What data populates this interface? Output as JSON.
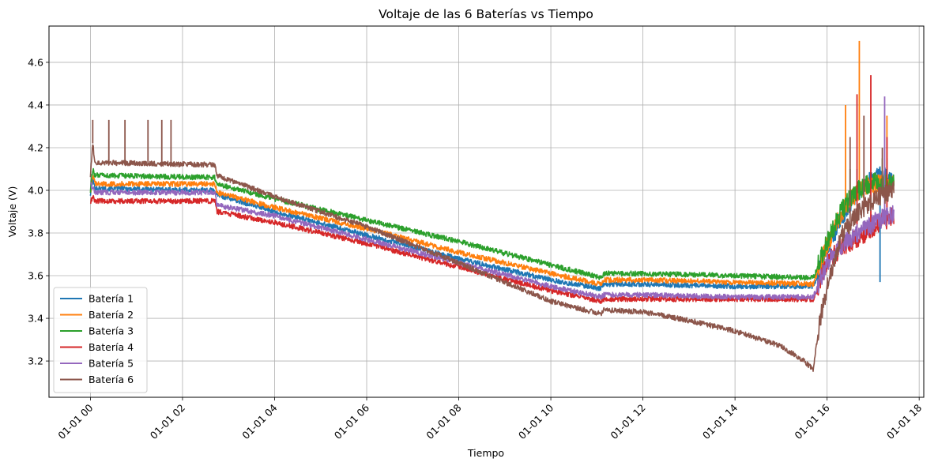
{
  "chart_data": {
    "type": "line",
    "title": "Voltaje de las 6 Baterías vs Tiempo",
    "xlabel": "Tiempo",
    "ylabel": "Voltaje (V)",
    "x_unit": "hours",
    "xlim": [
      -0.9,
      18.1
    ],
    "ylim": [
      3.03,
      4.77
    ],
    "x_ticks": [
      {
        "v": 0,
        "label": "01-01 00"
      },
      {
        "v": 2,
        "label": "01-01 02"
      },
      {
        "v": 4,
        "label": "01-01 04"
      },
      {
        "v": 6,
        "label": "01-01 06"
      },
      {
        "v": 8,
        "label": "01-01 08"
      },
      {
        "v": 10,
        "label": "01-01 10"
      },
      {
        "v": 12,
        "label": "01-01 12"
      },
      {
        "v": 14,
        "label": "01-01 14"
      },
      {
        "v": 16,
        "label": "01-01 16"
      },
      {
        "v": 18,
        "label": "01-01 18"
      }
    ],
    "y_ticks": [
      {
        "v": 3.2,
        "label": "3.2"
      },
      {
        "v": 3.4,
        "label": "3.4"
      },
      {
        "v": 3.6,
        "label": "3.6"
      },
      {
        "v": 3.8,
        "label": "3.8"
      },
      {
        "v": 4.0,
        "label": "4.0"
      },
      {
        "v": 4.2,
        "label": "4.2"
      },
      {
        "v": 4.4,
        "label": "4.4"
      },
      {
        "v": 4.6,
        "label": "4.6"
      }
    ],
    "grid": true,
    "legend_position": "lower-left",
    "series": [
      {
        "name": "Batería 1",
        "color": "#1f77b4",
        "x": [
          0,
          0.05,
          0.1,
          2.7,
          2.75,
          4,
          6,
          8,
          10,
          11.1,
          11.15,
          12,
          14,
          15.7,
          16,
          16.3,
          16.6,
          16.9,
          17.1,
          17.45
        ],
        "y": [
          3.98,
          4.05,
          4.01,
          4.0,
          3.98,
          3.9,
          3.79,
          3.68,
          3.58,
          3.54,
          3.56,
          3.56,
          3.55,
          3.55,
          3.72,
          3.87,
          3.97,
          4.05,
          4.07,
          4.05
        ],
        "spikes": [
          [
            16.65,
            4.1
          ],
          [
            17.15,
            3.57
          ],
          [
            17.3,
            4.15
          ]
        ]
      },
      {
        "name": "Batería 2",
        "color": "#ff7f0e",
        "x": [
          0,
          0.05,
          0.1,
          2.7,
          2.75,
          4,
          6,
          8,
          10,
          11.1,
          11.15,
          12,
          14,
          15.7,
          16,
          16.3,
          16.6,
          16.9,
          17.1,
          17.45
        ],
        "y": [
          3.99,
          4.07,
          4.03,
          4.03,
          3.99,
          3.92,
          3.82,
          3.71,
          3.61,
          3.56,
          3.58,
          3.58,
          3.57,
          3.56,
          3.74,
          3.89,
          3.98,
          4.02,
          4.03,
          4.02
        ],
        "spikes": [
          [
            16.4,
            4.4
          ],
          [
            16.7,
            4.7
          ],
          [
            17.3,
            4.35
          ]
        ]
      },
      {
        "name": "Batería 3",
        "color": "#2ca02c",
        "x": [
          0,
          0.05,
          0.1,
          2.7,
          2.75,
          4,
          6,
          8,
          10,
          11.1,
          11.15,
          12,
          14,
          15.7,
          16,
          16.3,
          16.6,
          16.9,
          17.1,
          17.45
        ],
        "y": [
          4.0,
          4.1,
          4.07,
          4.06,
          4.03,
          3.96,
          3.86,
          3.76,
          3.65,
          3.59,
          3.61,
          3.61,
          3.6,
          3.59,
          3.76,
          3.9,
          3.99,
          4.03,
          4.04,
          4.03
        ],
        "spikes": [
          [
            16.5,
            4.1
          ],
          [
            17.2,
            4.15
          ]
        ]
      },
      {
        "name": "Batería 4",
        "color": "#d62728",
        "x": [
          0,
          0.05,
          0.1,
          2.7,
          2.75,
          4,
          6,
          8,
          10,
          11.1,
          11.15,
          12,
          14,
          15.7,
          16,
          16.3,
          16.6,
          16.9,
          17.1,
          17.45
        ],
        "y": [
          3.94,
          3.97,
          3.95,
          3.95,
          3.9,
          3.85,
          3.75,
          3.64,
          3.53,
          3.48,
          3.49,
          3.49,
          3.49,
          3.49,
          3.66,
          3.73,
          3.77,
          3.81,
          3.84,
          3.88
        ],
        "spikes": [
          [
            16.65,
            4.45
          ],
          [
            16.95,
            4.54
          ],
          [
            17.3,
            4.25
          ]
        ]
      },
      {
        "name": "Batería 5",
        "color": "#9467bd",
        "x": [
          0,
          0.05,
          0.1,
          2.7,
          2.75,
          4,
          6,
          8,
          10,
          11.1,
          11.15,
          12,
          14,
          15.7,
          16,
          16.3,
          16.6,
          16.9,
          17.1,
          17.45
        ],
        "y": [
          4.03,
          4.01,
          3.99,
          3.99,
          3.93,
          3.88,
          3.77,
          3.66,
          3.55,
          3.5,
          3.51,
          3.51,
          3.5,
          3.5,
          3.66,
          3.74,
          3.79,
          3.83,
          3.86,
          3.89
        ],
        "spikes": [
          [
            17.25,
            4.44
          ]
        ]
      },
      {
        "name": "Batería 6",
        "color": "#8c564b",
        "x": [
          0,
          0.05,
          0.1,
          2.7,
          2.75,
          4,
          6,
          8,
          10,
          11.1,
          11.15,
          12,
          13,
          14,
          15,
          15.5,
          15.7,
          15.85,
          16,
          16.3,
          16.6,
          16.9,
          17.1,
          17.45
        ],
        "y": [
          4.07,
          4.22,
          4.13,
          4.12,
          4.07,
          3.97,
          3.83,
          3.66,
          3.48,
          3.42,
          3.44,
          3.43,
          3.39,
          3.34,
          3.27,
          3.2,
          3.16,
          3.4,
          3.55,
          3.78,
          3.88,
          3.94,
          3.97,
          4.0
        ],
        "spikes": [
          [
            0.05,
            4.33
          ],
          [
            0.4,
            4.33
          ],
          [
            0.75,
            4.33
          ],
          [
            1.25,
            4.33
          ],
          [
            1.55,
            4.33
          ],
          [
            1.75,
            4.33
          ],
          [
            16.5,
            4.25
          ],
          [
            16.8,
            4.35
          ],
          [
            17.2,
            4.2
          ]
        ]
      }
    ]
  }
}
